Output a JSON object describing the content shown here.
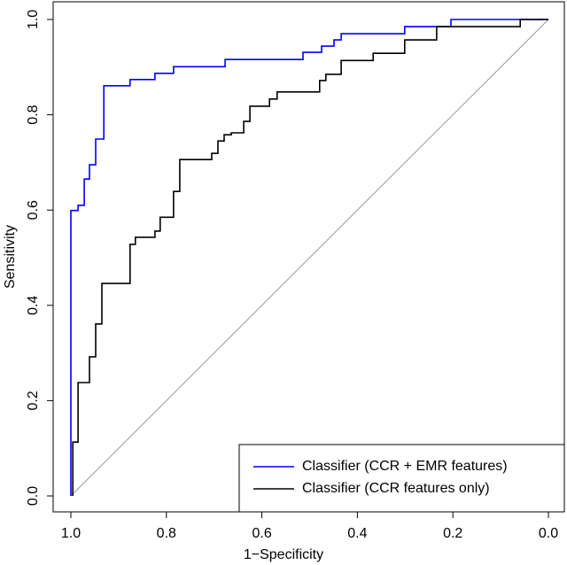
{
  "chart_data": {
    "type": "line",
    "x_label": "1−Specificity",
    "y_label": "Sensitivity",
    "xlim": [
      1.0,
      0.0
    ],
    "ylim": [
      0.0,
      1.0
    ],
    "xticks": [
      {
        "value": 1,
        "label": "1.0"
      },
      0.8,
      0.6,
      0.4,
      0.2,
      {
        "value": 0,
        "label": "0.0"
      }
    ],
    "yticks": [
      {
        "value": 0,
        "label": "0.0"
      },
      0.2,
      0.4,
      0.6,
      0.8,
      {
        "value": 1,
        "label": "1.0"
      }
    ],
    "diagonal": true,
    "legend": "bottomright",
    "series": [
      {
        "name": "Classifier (CCR + EMR features)",
        "color": "#0000ff",
        "x": [
          1.0,
          1.0,
          0.985,
          0.985,
          0.972,
          0.972,
          0.961,
          0.961,
          0.948,
          0.948,
          0.931,
          0.931,
          0.876,
          0.876,
          0.824,
          0.824,
          0.785,
          0.785,
          0.677,
          0.677,
          0.514,
          0.514,
          0.475,
          0.475,
          0.449,
          0.449,
          0.434,
          0.434,
          0.301,
          0.301,
          0.204,
          0.204,
          0.0
        ],
        "values": [
          0,
          0.599,
          0.599,
          0.61,
          0.61,
          0.665,
          0.665,
          0.695,
          0.695,
          0.749,
          0.749,
          0.861,
          0.861,
          0.874,
          0.874,
          0.887,
          0.887,
          0.901,
          0.901,
          0.916,
          0.916,
          0.931,
          0.931,
          0.944,
          0.944,
          0.957,
          0.957,
          0.97,
          0.97,
          0.985,
          0.985,
          1.0,
          1.0
        ]
      },
      {
        "name": "Classifier (CCR features only)",
        "color": "#000000",
        "x": [
          0.996,
          0.996,
          0.985,
          0.985,
          0.961,
          0.961,
          0.948,
          0.948,
          0.935,
          0.935,
          0.876,
          0.876,
          0.865,
          0.865,
          0.824,
          0.824,
          0.813,
          0.813,
          0.785,
          0.785,
          0.772,
          0.772,
          0.705,
          0.705,
          0.692,
          0.692,
          0.679,
          0.679,
          0.664,
          0.664,
          0.638,
          0.638,
          0.625,
          0.625,
          0.584,
          0.584,
          0.568,
          0.568,
          0.479,
          0.479,
          0.466,
          0.466,
          0.434,
          0.434,
          0.367,
          0.367,
          0.301,
          0.301,
          0.234,
          0.234,
          0.059,
          0.059,
          0.0
        ],
        "values": [
          0,
          0.113,
          0.113,
          0.238,
          0.238,
          0.292,
          0.292,
          0.361,
          0.361,
          0.446,
          0.446,
          0.528,
          0.528,
          0.543,
          0.543,
          0.556,
          0.556,
          0.585,
          0.585,
          0.639,
          0.639,
          0.706,
          0.706,
          0.719,
          0.719,
          0.745,
          0.745,
          0.758,
          0.758,
          0.762,
          0.762,
          0.786,
          0.786,
          0.818,
          0.818,
          0.833,
          0.833,
          0.848,
          0.848,
          0.872,
          0.872,
          0.885,
          0.885,
          0.914,
          0.914,
          0.929,
          0.929,
          0.957,
          0.957,
          0.985,
          0.985,
          1.0,
          1.0
        ]
      }
    ]
  }
}
